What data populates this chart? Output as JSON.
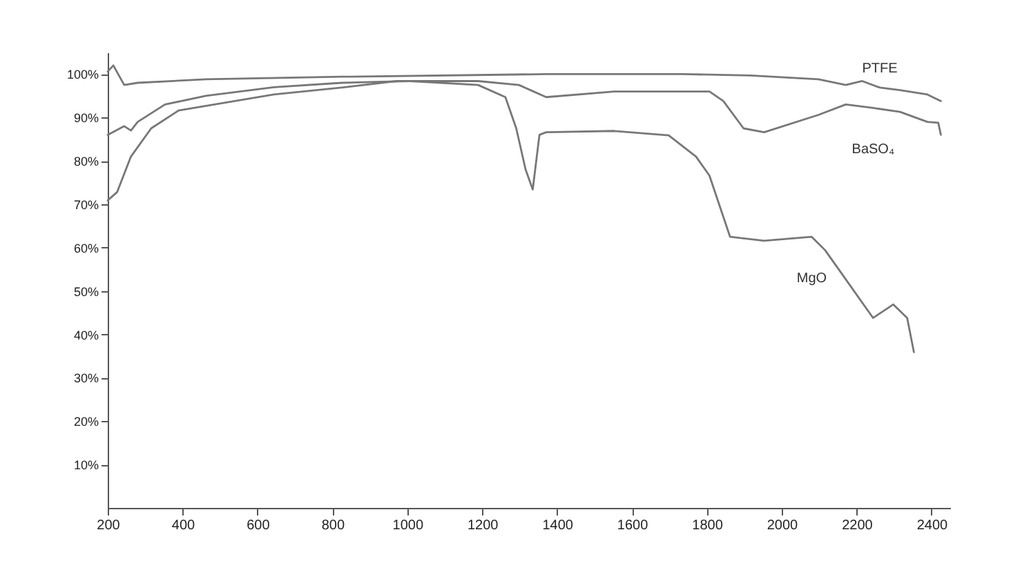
{
  "chart_data": {
    "type": "line",
    "xlim": [
      200,
      2450
    ],
    "xticks": [
      200,
      400,
      600,
      800,
      1000,
      1200,
      1400,
      1600,
      1800,
      2000,
      2200,
      2400
    ],
    "ylim": [
      0,
      105
    ],
    "yticks": [
      {
        "value": 10,
        "label": "10%"
      },
      {
        "value": 20,
        "label": "20%"
      },
      {
        "value": 30,
        "label": "30%"
      },
      {
        "value": 40,
        "label": "40%"
      },
      {
        "value": 50,
        "label": "50%"
      },
      {
        "value": 60,
        "label": "60%"
      },
      {
        "value": 70,
        "label": "70%"
      },
      {
        "value": 80,
        "label": "80%"
      },
      {
        "value": 90,
        "label": "90%"
      },
      {
        "value": 100,
        "label": "100%"
      }
    ],
    "grid": false,
    "marker": "none",
    "line_style": "solid",
    "series": [
      {
        "name": "PTFE",
        "color": "#777777",
        "x": [
          200,
          215,
          244,
          280,
          462,
          825,
          1371,
          1735,
          1916,
          2098,
          2171,
          2215,
          2262,
          2316,
          2389,
          2425
        ],
        "values": [
          100.6,
          102,
          97.5,
          98,
          98.8,
          99.4,
          100,
          100,
          99.7,
          98.8,
          97.5,
          98.4,
          96.9,
          96.3,
          95.3,
          93.8
        ]
      },
      {
        "name": "BaSO₄",
        "color": "#777777",
        "x": [
          200,
          244,
          262,
          280,
          353,
          462,
          644,
          825,
          1007,
          1189,
          1298,
          1371,
          1553,
          1807,
          1844,
          1898,
          1953,
          2098,
          2171,
          2244,
          2316,
          2389,
          2418,
          2425
        ],
        "values": [
          86,
          88,
          87,
          89,
          93,
          95,
          97,
          98,
          98.4,
          98.4,
          97.5,
          94.7,
          96,
          96,
          93.8,
          87.5,
          86.6,
          90.6,
          93,
          92.2,
          91.3,
          89,
          88.8,
          86
        ]
      },
      {
        "name": "MgO",
        "color": "#777777",
        "x": [
          200,
          225,
          262,
          316,
          389,
          644,
          825,
          971,
          1007,
          1189,
          1262,
          1291,
          1316,
          1335,
          1353,
          1371,
          1553,
          1698,
          1771,
          1807,
          1862,
          1953,
          2080,
          2116,
          2244,
          2298,
          2335,
          2353
        ],
        "values": [
          70.9,
          72.8,
          81,
          87.5,
          91.6,
          95.3,
          96.9,
          98.4,
          98.4,
          97.5,
          94.7,
          87.5,
          78,
          73.4,
          86,
          86.6,
          86.9,
          85.9,
          81,
          76.6,
          62.5,
          61.6,
          62.5,
          59.4,
          43.8,
          46.9,
          43.8,
          35.9
        ]
      }
    ]
  }
}
